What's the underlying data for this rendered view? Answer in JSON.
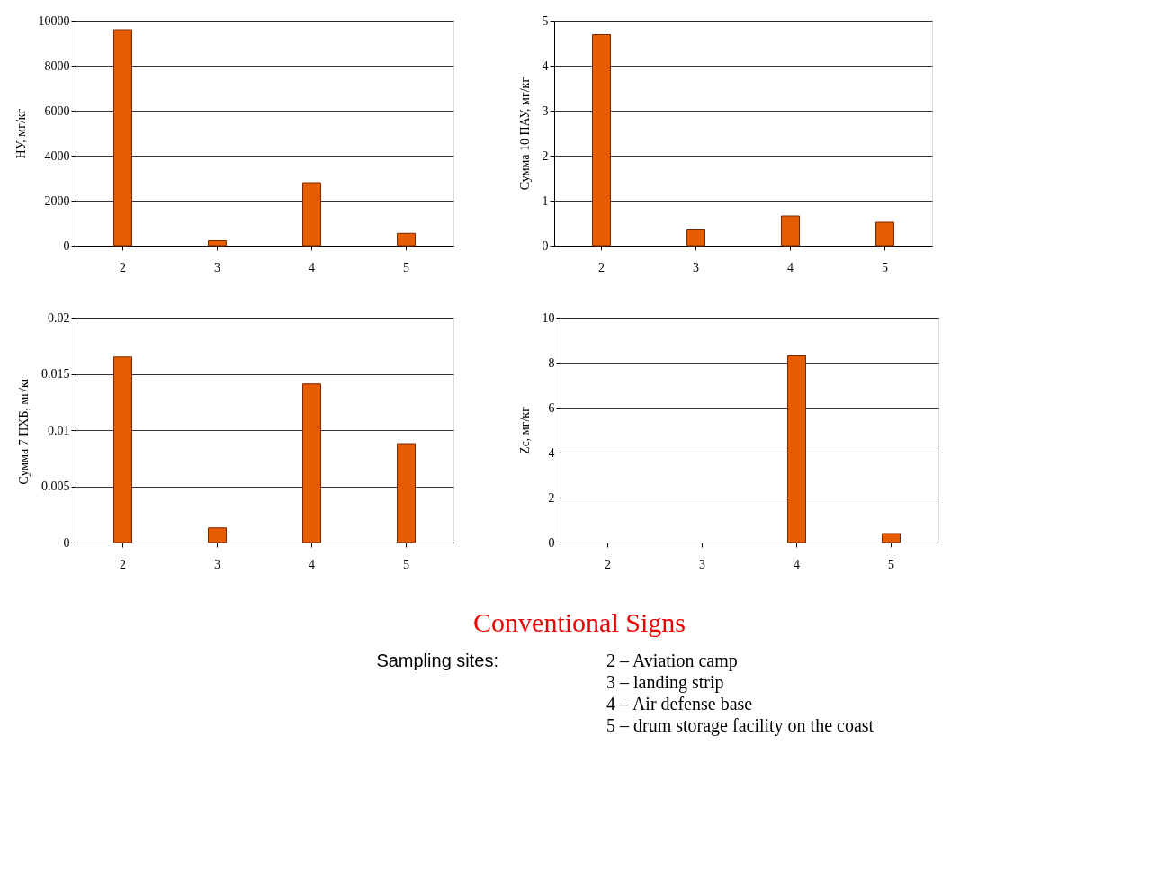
{
  "chart_data": [
    {
      "type": "bar",
      "ylabel": "НУ, мг/кг",
      "categories": [
        "2",
        "3",
        "4",
        "5"
      ],
      "values": [
        9600,
        220,
        2800,
        550
      ],
      "color": "#e65c00",
      "ylim": [
        0,
        10000
      ],
      "yticks": [
        0,
        2000,
        4000,
        6000,
        8000,
        10000
      ],
      "grid": "y"
    },
    {
      "type": "bar",
      "ylabel": "Сумма 10 ПАУ, мг/кг",
      "categories": [
        "2",
        "3",
        "4",
        "5"
      ],
      "values": [
        4.69,
        0.35,
        0.66,
        0.52
      ],
      "color": "#e65c00",
      "ylim": [
        0,
        5
      ],
      "yticks": [
        0,
        1,
        2,
        3,
        4,
        5
      ],
      "grid": "y"
    },
    {
      "type": "bar",
      "ylabel": "Сумма 7 ПХБ, мг/кг",
      "categories": [
        "2",
        "3",
        "4",
        "5"
      ],
      "values": [
        0.0165,
        0.0013,
        0.0141,
        0.0088
      ],
      "color": "#e65c00",
      "ylim": [
        0,
        0.02
      ],
      "yticks": [
        0,
        0.005,
        0.01,
        0.015,
        0.02
      ],
      "grid": "y"
    },
    {
      "type": "bar",
      "ylabel": "Zc, мг/кг",
      "categories": [
        "2",
        "3",
        "4",
        "5"
      ],
      "values": [
        null,
        null,
        8.3,
        0.4
      ],
      "color": "#e65c00",
      "ylim": [
        0,
        10
      ],
      "yticks": [
        0,
        2,
        4,
        6,
        8,
        10
      ],
      "grid": "y"
    },
    {
      "type": "other",
      "title": "Conventional Signs",
      "annotations": [
        "Sampling sites:",
        "2 – Aviation camp",
        "3 – landing strip",
        "4 – Air defense base",
        "5 – drum storage facility on the coast"
      ]
    }
  ]
}
